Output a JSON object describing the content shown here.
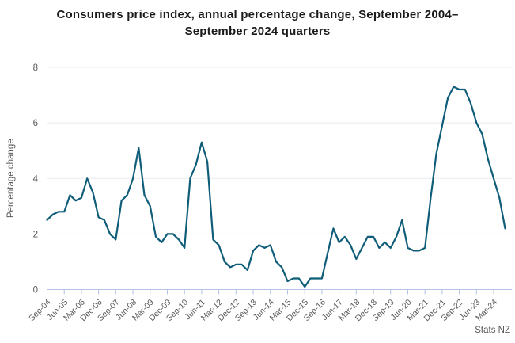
{
  "page": {
    "title": "Consumers price index, annual percentage change, September 2004–September 2024 quarters",
    "source": "Stats NZ"
  },
  "chart_data": {
    "type": "line",
    "title": "Consumers price index, annual percentage change, September 2004–September 2024 quarters",
    "xlabel": "",
    "ylabel": "Percentage change",
    "ylim": [
      0,
      8
    ],
    "yticks": [
      0,
      2,
      4,
      6,
      8
    ],
    "grid": "horizontal",
    "legend": "none",
    "x_label_every": 3,
    "categories": [
      "Sep-04",
      "Dec-04",
      "Mar-05",
      "Jun-05",
      "Sep-05",
      "Dec-05",
      "Mar-06",
      "Jun-06",
      "Sep-06",
      "Dec-06",
      "Mar-07",
      "Jun-07",
      "Sep-07",
      "Dec-07",
      "Mar-08",
      "Jun-08",
      "Sep-08",
      "Dec-08",
      "Mar-09",
      "Jun-09",
      "Sep-09",
      "Dec-09",
      "Mar-10",
      "Jun-10",
      "Sep-10",
      "Dec-10",
      "Mar-11",
      "Jun-11",
      "Sep-11",
      "Dec-11",
      "Mar-12",
      "Jun-12",
      "Sep-12",
      "Dec-12",
      "Mar-13",
      "Jun-13",
      "Sep-13",
      "Dec-13",
      "Mar-14",
      "Jun-14",
      "Sep-14",
      "Dec-14",
      "Mar-15",
      "Jun-15",
      "Sep-15",
      "Dec-15",
      "Mar-16",
      "Jun-16",
      "Sep-16",
      "Dec-16",
      "Mar-17",
      "Jun-17",
      "Sep-17",
      "Dec-17",
      "Mar-18",
      "Jun-18",
      "Sep-18",
      "Dec-18",
      "Mar-19",
      "Jun-19",
      "Sep-19",
      "Dec-19",
      "Mar-20",
      "Jun-20",
      "Sep-20",
      "Dec-20",
      "Mar-21",
      "Jun-21",
      "Sep-21",
      "Dec-21",
      "Mar-22",
      "Jun-22",
      "Sep-22",
      "Dec-22",
      "Mar-23",
      "Jun-23",
      "Sep-23",
      "Dec-23",
      "Mar-24",
      "Jun-24",
      "Sep-24"
    ],
    "series": [
      {
        "name": "CPI annual percentage change",
        "values": [
          2.5,
          2.7,
          2.8,
          2.8,
          3.4,
          3.2,
          3.3,
          4.0,
          3.5,
          2.6,
          2.5,
          2.0,
          1.8,
          3.2,
          3.4,
          4.0,
          5.1,
          3.4,
          3.0,
          1.9,
          1.7,
          2.0,
          2.0,
          1.8,
          1.5,
          4.0,
          4.5,
          5.3,
          4.6,
          1.8,
          1.6,
          1.0,
          0.8,
          0.9,
          0.9,
          0.7,
          1.4,
          1.6,
          1.5,
          1.6,
          1.0,
          0.8,
          0.3,
          0.4,
          0.4,
          0.1,
          0.4,
          0.4,
          0.4,
          1.3,
          2.2,
          1.7,
          1.9,
          1.6,
          1.1,
          1.5,
          1.9,
          1.9,
          1.5,
          1.7,
          1.5,
          1.9,
          2.5,
          1.5,
          1.4,
          1.4,
          1.5,
          3.3,
          4.9,
          5.9,
          6.9,
          7.3,
          7.2,
          7.2,
          6.7,
          6.0,
          5.6,
          4.7,
          4.0,
          3.3,
          2.2
        ]
      }
    ],
    "colors": {
      "line": "#0f5d78",
      "axis": "#b4c1e4",
      "grid": "#e9eaef",
      "tick_text": "#595959",
      "title_text": "#1a1a1a"
    }
  }
}
